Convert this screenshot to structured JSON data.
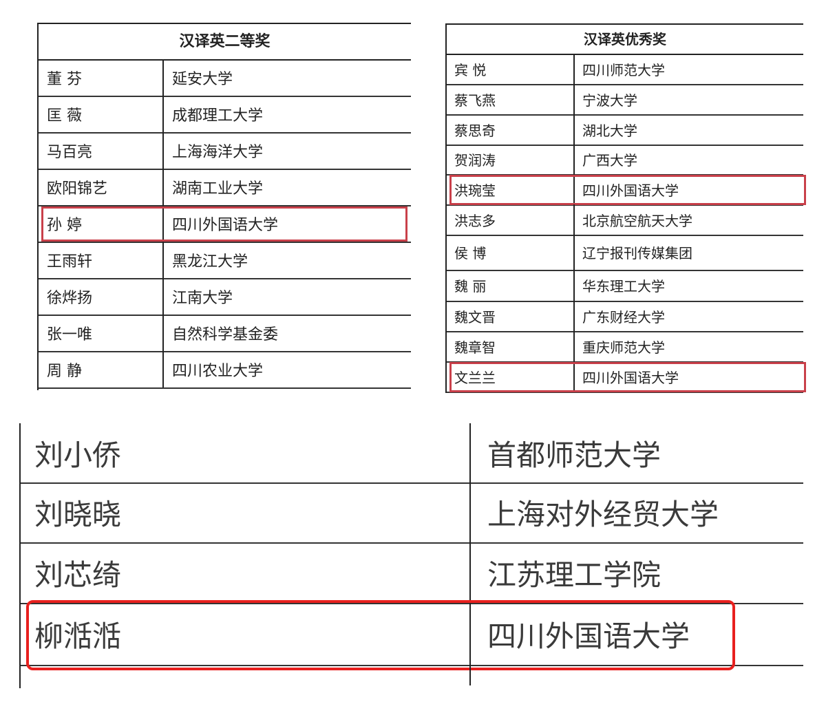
{
  "table_second_prize": {
    "title": "汉译英二等奖",
    "rows": [
      {
        "name": "董 芬",
        "org": "延安大学"
      },
      {
        "name": "匡 薇",
        "org": "成都理工大学"
      },
      {
        "name": "马百亮",
        "org": "上海海洋大学"
      },
      {
        "name": "欧阳锦艺",
        "org": "湖南工业大学"
      },
      {
        "name": "孙 婷",
        "org": "四川外国语大学",
        "highlighted": true
      },
      {
        "name": "王雨轩",
        "org": "黑龙江大学"
      },
      {
        "name": "徐烨扬",
        "org": "江南大学"
      },
      {
        "name": "张一唯",
        "org": "自然科学基金委"
      },
      {
        "name": "周 静",
        "org": "四川农业大学"
      }
    ]
  },
  "table_excellence_prize": {
    "title": "汉译英优秀奖",
    "rows": [
      {
        "name": "宾 悦",
        "org": "四川师范大学"
      },
      {
        "name": "蔡飞燕",
        "org": "宁波大学"
      },
      {
        "name": "蔡思奇",
        "org": "湖北大学"
      },
      {
        "name": "贺润涛",
        "org": "广西大学"
      },
      {
        "name": "洪琬莹",
        "org": "四川外国语大学",
        "highlighted": true
      },
      {
        "name": "洪志多",
        "org": "北京航空航天大学"
      },
      {
        "name": "侯 博",
        "org": "辽宁报刊传媒集团"
      },
      {
        "name": "魏 丽",
        "org": "华东理工大学"
      },
      {
        "name": "魏文晋",
        "org": "广东财经大学"
      },
      {
        "name": "魏章智",
        "org": "重庆师范大学"
      },
      {
        "name": "文兰兰",
        "org": "四川外国语大学",
        "highlighted": true
      }
    ]
  },
  "table_zoomed": {
    "rows": [
      {
        "name": "刘小侨",
        "org": "首都师范大学"
      },
      {
        "name": "刘晓晓",
        "org": "上海对外经贸大学"
      },
      {
        "name": "刘芯绮",
        "org": "江苏理工学院"
      },
      {
        "name": "柳湉湉",
        "org": "四川外国语大学",
        "highlighted": true
      }
    ]
  },
  "colors": {
    "highlight": "#c9404a",
    "highlight_bright": "#e8201e",
    "rule": "#222222"
  }
}
